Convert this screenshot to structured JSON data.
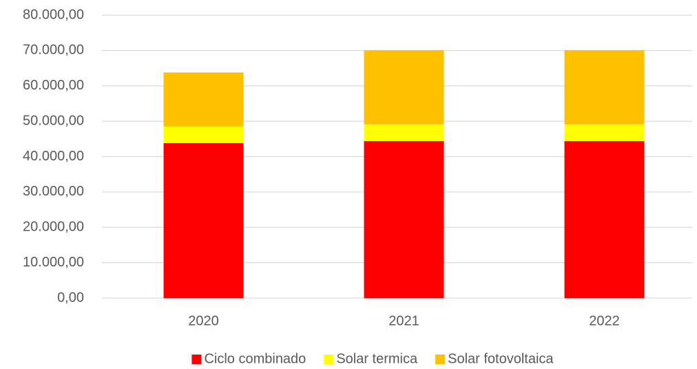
{
  "chart_data": {
    "type": "stacked_bar",
    "categories": [
      "2020",
      "2021",
      "2022"
    ],
    "series": [
      {
        "name": "Ciclo combinado",
        "color": "#ff0000",
        "values": [
          43800,
          44400,
          44400
        ]
      },
      {
        "name": "Solar termica",
        "color": "#ffff00",
        "values": [
          4700,
          4700,
          4700
        ]
      },
      {
        "name": "Solar fotovoltaica",
        "color": "#ffc000",
        "values": [
          15300,
          21000,
          21000
        ]
      }
    ],
    "ylim": [
      0,
      80000
    ],
    "yticks": [
      {
        "value": 0,
        "label": "0,00"
      },
      {
        "value": 10000,
        "label": "10.000,00"
      },
      {
        "value": 20000,
        "label": "20.000,00"
      },
      {
        "value": 30000,
        "label": "30.000,00"
      },
      {
        "value": 40000,
        "label": "40.000,00"
      },
      {
        "value": 50000,
        "label": "50.000,00"
      },
      {
        "value": 60000,
        "label": "60.000,00"
      },
      {
        "value": 70000,
        "label": "70.000,00"
      },
      {
        "value": 80000,
        "label": "80.000,00"
      }
    ],
    "grid": true,
    "legend": "bottom"
  }
}
